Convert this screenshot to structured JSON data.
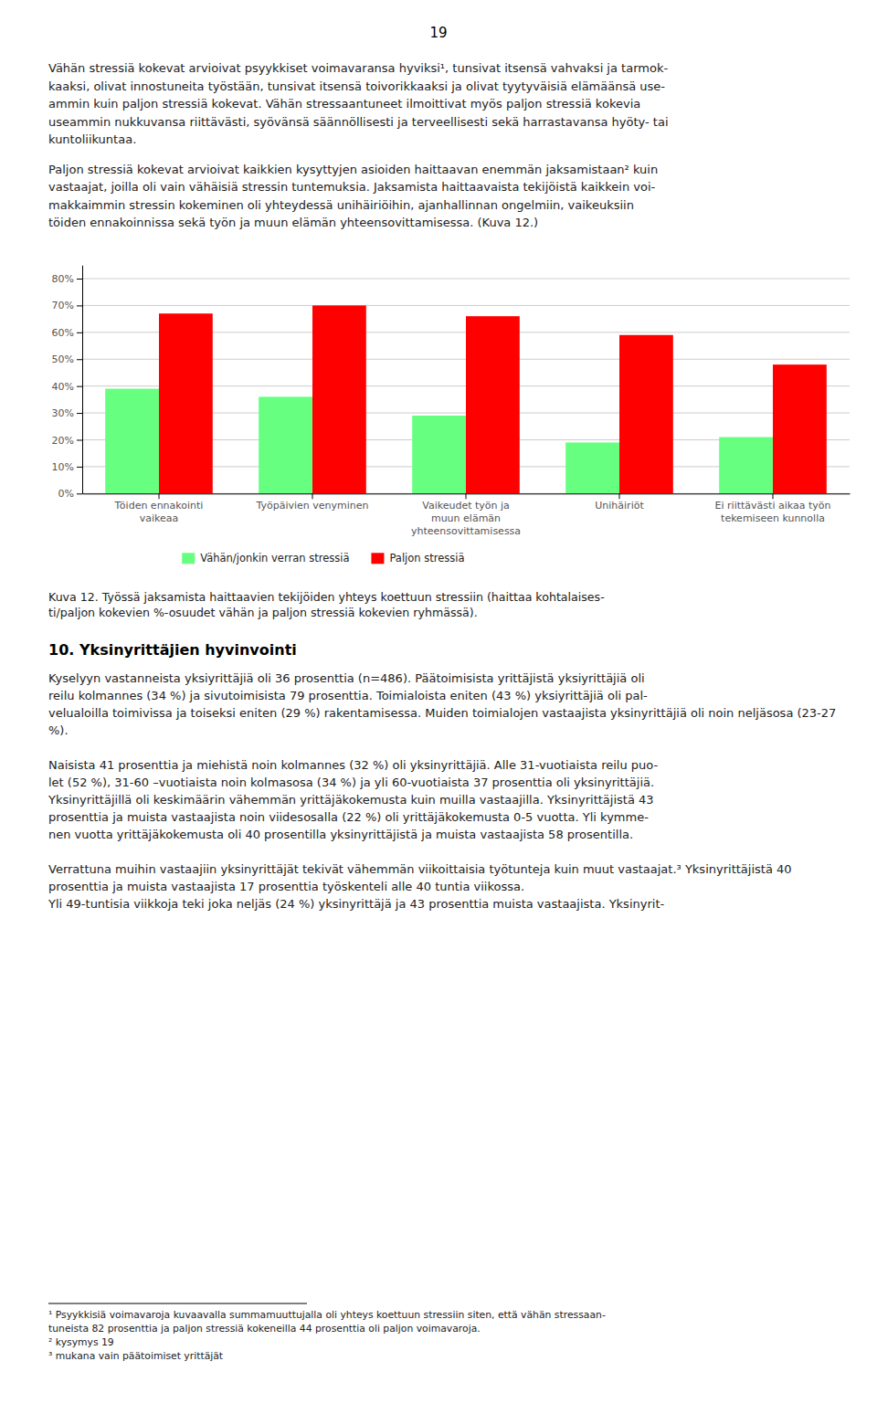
{
  "page_number": "19",
  "text_blocks": [
    "Vähän stressiä kokevat arvioivat psyykkiset voimavaransa hyviksi¹, tunsivat itsensä vahvaksi ja tarmok-\nkaaksi, olivat innostuneita työstään, tunsivat itsensä toivorikkaaksi ja olivat tyytyväisiä elämäänsä use-\nammin kuin paljon stressiä kokevat. Vähän stressaantuneet ilmoittivat myös paljon stressiä kokevia\nuseammin nukkuvansa riittävästi, syövänsä säännöllisesti ja terveellisesti sekä harrastavansa hyöty- tai\nkuntoliikuntaa.",
    "Paljon stressiä kokevat arvioivat kaikkien kysyttyjen asioiden haittaavan enemmän jaksamistaan² kuin\nvastaajat, joilla oli vain vähäisiä stressin tuntemuksia. Jaksamista haittaavaista tekijöistä kaikkein voi-\nmakkaimmin stressin kokeminen oli yhteydessä unihäiriöihin, ajanhallinnan ongelmiin, vaikeuksiin\ntöiden ennakoinnissa sekä työn ja muun elämän yhteensovittamisessa. (Kuva 12.)"
  ],
  "chart_data": {
    "type": "bar",
    "categories": [
      "Töiden ennakointi\nvaikeaa",
      "Työpäivien venyminen",
      "Vaikeudet työn ja\nmuun elämän\nyhteensovittamisessa",
      "Unihäiriöt",
      "Ei riittävästi aikaa työn\ntekemiseen kunnolla"
    ],
    "series": [
      {
        "name": "Vähän/jonkin verran stressiä",
        "color": "#66FF7F",
        "values": [
          39,
          36,
          29,
          19,
          21
        ]
      },
      {
        "name": "Paljon stressiä",
        "color": "#FF0000",
        "values": [
          67,
          70,
          66,
          59,
          48
        ]
      }
    ],
    "ylim": [
      0,
      85
    ],
    "yticks": [
      {
        "value": 0,
        "label": "0%"
      },
      {
        "value": 10,
        "label": "10%"
      },
      {
        "value": 20,
        "label": "20%"
      },
      {
        "value": 30,
        "label": "30%"
      },
      {
        "value": 40,
        "label": "40%"
      },
      {
        "value": 50,
        "label": "50%"
      },
      {
        "value": 60,
        "label": "60%"
      },
      {
        "value": 70,
        "label": "70%"
      },
      {
        "value": 80,
        "label": "80%"
      }
    ],
    "grid": true,
    "legend": "bottom"
  },
  "caption": "Kuva 12. Työssä jaksamista haittaavien tekijöiden yhteys koettuun stressiin (haittaa kohtalaises-\nti/paljon kokevien %-osuudet vähän ja paljon stressiä kokevien ryhmässä).",
  "section_header": "10.   Yksinyrittäjien hyvinvointi",
  "body_text": "Kyselyyn vastanneista yksiyrittäjiä oli 36 prosenttia (n=486). Päätoimisista yrittäjistä yksiyrittäjiä oli\nreilu kolmannes (34 %) ja sivutoimisista 79 prosenttia. Toimialoista eniten (43 %) yksiyrittäjiä oli pal-\nvelualoilla toimivissa ja toiseksi eniten (29 %) rakentamisessa. Muiden toimialojen vastaajista yksinyrittäjiä oli noin neljäsosa (23-27 %).\n\nNaisista 41 prosenttia ja miehistä noin kolmannes (32 %) oli yksinyrittäjiä. Alle 31-vuotiaista reilu puo-\nlet (52 %), 31-60 –vuotiaista noin kolmasosa (34 %) ja yli 60-vuotiaista 37 prosenttia oli yksinyrittäjiä.\nYksinyrittäjillä oli keskimäärin vähemmän yrittäjäkokemusta kuin muilla vastaajilla. Yksinyrittäjistä 43\nprosenttia ja muista vastaajista noin viidesosalla (22 %) oli yrittäjäkokemusta 0-5 vuotta. Yli kymme-\nnen vuotta yrittäjäkokemusta oli 40 prosentilla yksinyrittäjistä ja muista vastaajista 58 prosentilla.\n\nVerrattuna muihin vastaajiin yksinyrittäjät tekivät vähemmän viikoittaisia työtunteja kuin muut vastaajat.³ Yksinyrittäjistä 40 prosenttia ja muista vastaajista 17 prosenttia työskenteli alle 40 tuntia viikossa.\nYli 49-tuntisia viikkoja teki joka neljäs (24 %) yksinyrittäjä ja 43 prosenttia muista vastaajista. Yksinyrit-",
  "footnotes": "¹ Psyykkisiä voimavaroja kuvaavalla summamuuttujalla oli yhteys koettuun stressiin siten, että vähän stressaan-\ntuneista 82 prosenttia ja paljon stressiä kokeneilla 44 prosenttia oli paljon voimavaroja.\n² kysymys 19\n³ mukana vain päätoimiset yrittäjät"
}
